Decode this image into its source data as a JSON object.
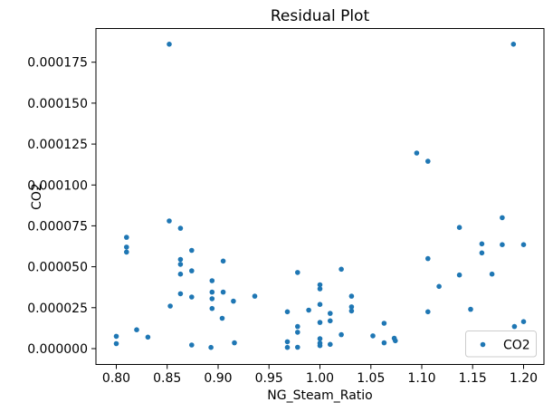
{
  "figure": {
    "background_color": "#ffffff",
    "spine_color": "#000000",
    "legend_edge_color": "#cccccc"
  },
  "chart_data": {
    "type": "scatter",
    "title": "Residual Plot",
    "xlabel": "NG_Steam_Ratio",
    "ylabel": "CO2",
    "grid": false,
    "legend_position": "lower right",
    "xlim": [
      0.78,
      1.22
    ],
    "ylim": [
      -9.7e-06,
      0.0001956
    ],
    "x_ticks": {
      "values": [
        0.8,
        0.85,
        0.9,
        0.95,
        1.0,
        1.05,
        1.1,
        1.15,
        1.2
      ],
      "labels": [
        "0.80",
        "0.85",
        "0.90",
        "0.95",
        "1.00",
        "1.05",
        "1.10",
        "1.15",
        "1.20"
      ]
    },
    "y_ticks": {
      "values": [
        0.0,
        2.5e-05,
        5e-05,
        7.5e-05,
        0.0001,
        0.000125,
        0.00015,
        0.000175
      ],
      "labels": [
        "0.000000",
        "0.000025",
        "0.000050",
        "0.000075",
        "0.000100",
        "0.000125",
        "0.000150",
        "0.000175"
      ]
    },
    "series": [
      {
        "name": "CO2",
        "color": "#1f77b4",
        "points": [
          [
            0.8,
            7.5e-06
          ],
          [
            0.8,
            3e-06
          ],
          [
            0.81,
            6.8e-05
          ],
          [
            0.81,
            6.2e-05
          ],
          [
            0.81,
            5.9e-05
          ],
          [
            0.82,
            1.15e-05
          ],
          [
            0.831,
            7e-06
          ],
          [
            0.852,
            0.000186
          ],
          [
            0.852,
            7.8e-05
          ],
          [
            0.853,
            2.6e-05
          ],
          [
            0.863,
            7.35e-05
          ],
          [
            0.863,
            5.45e-05
          ],
          [
            0.863,
            5.15e-05
          ],
          [
            0.863,
            4.55e-05
          ],
          [
            0.863,
            3.35e-05
          ],
          [
            0.874,
            6e-05
          ],
          [
            0.874,
            4.75e-05
          ],
          [
            0.874,
            3.15e-05
          ],
          [
            0.874,
            2.2e-06
          ],
          [
            0.894,
            4.15e-05
          ],
          [
            0.894,
            3.45e-05
          ],
          [
            0.894,
            3.05e-05
          ],
          [
            0.894,
            2.45e-05
          ],
          [
            0.893,
            7e-07
          ],
          [
            0.905,
            5.35e-05
          ],
          [
            0.905,
            3.45e-05
          ],
          [
            0.904,
            1.85e-05
          ],
          [
            0.915,
            2.9e-05
          ],
          [
            0.916,
            3.5e-06
          ],
          [
            0.936,
            3.2e-05
          ],
          [
            0.968,
            2.25e-05
          ],
          [
            0.968,
            4.2e-06
          ],
          [
            0.968,
            7e-07
          ],
          [
            0.978,
            4.65e-05
          ],
          [
            0.978,
            1.35e-05
          ],
          [
            0.978,
            1e-05
          ],
          [
            0.978,
            8e-07
          ],
          [
            0.989,
            2.35e-05
          ],
          [
            1.0,
            3.9e-05
          ],
          [
            1.0,
            3.65e-05
          ],
          [
            1.0,
            2.7e-05
          ],
          [
            1.0,
            1.6e-05
          ],
          [
            1.0,
            6e-06
          ],
          [
            1.0,
            3.3e-06
          ],
          [
            1.0,
            1.8e-06
          ],
          [
            1.01,
            2.15e-05
          ],
          [
            1.01,
            1.7e-05
          ],
          [
            1.01,
            2.6e-06
          ],
          [
            1.021,
            4.85e-05
          ],
          [
            1.021,
            8.5e-06
          ],
          [
            1.031,
            3.2e-05
          ],
          [
            1.031,
            2.55e-05
          ],
          [
            1.031,
            2.3e-05
          ],
          [
            1.052,
            7.8e-06
          ],
          [
            1.063,
            1.55e-05
          ],
          [
            1.063,
            3.5e-06
          ],
          [
            1.073,
            6.3e-06
          ],
          [
            1.074,
            4.8e-06
          ],
          [
            1.095,
            0.0001195
          ],
          [
            1.106,
            0.0001145
          ],
          [
            1.106,
            5.5e-05
          ],
          [
            1.106,
            2.25e-05
          ],
          [
            1.117,
            3.8e-05
          ],
          [
            1.137,
            7.4e-05
          ],
          [
            1.137,
            4.5e-05
          ],
          [
            1.148,
            2.4e-05
          ],
          [
            1.159,
            6.4e-05
          ],
          [
            1.159,
            5.85e-05
          ],
          [
            1.169,
            4.55e-05
          ],
          [
            1.179,
            8e-05
          ],
          [
            1.179,
            6.35e-05
          ],
          [
            1.19,
            0.000186
          ],
          [
            1.191,
            1.35e-05
          ],
          [
            1.2,
            6.35e-05
          ],
          [
            1.2,
            1.65e-05
          ]
        ]
      }
    ]
  }
}
